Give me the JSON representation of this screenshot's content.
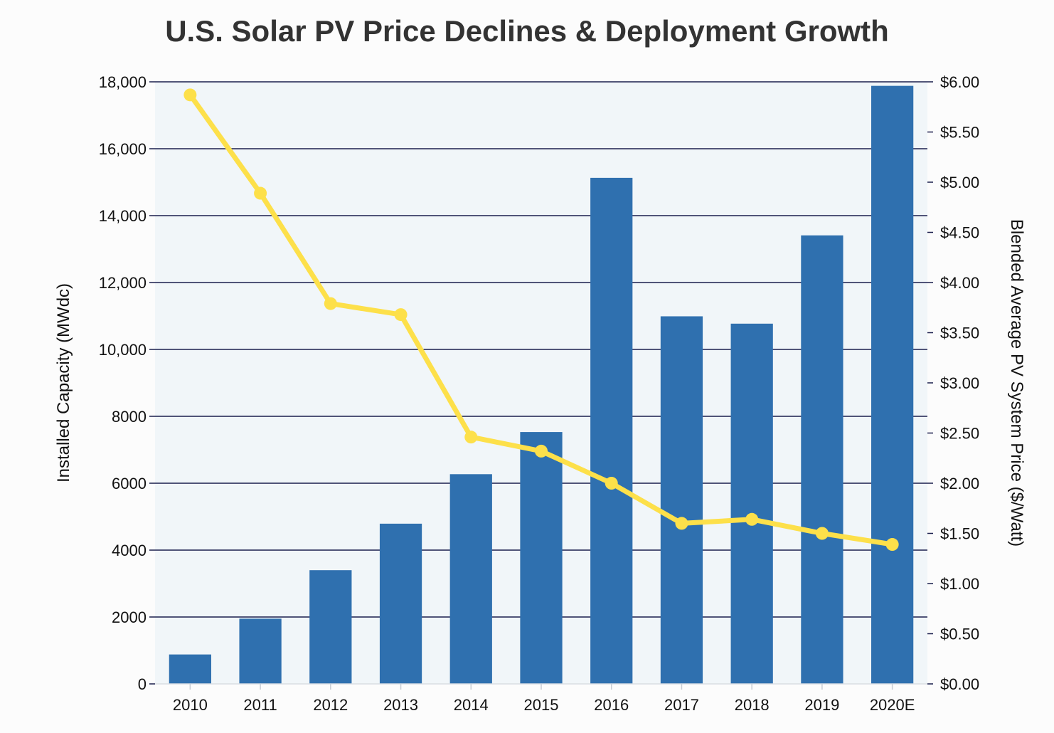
{
  "chart_data": {
    "type": "bar",
    "title": "U.S. Solar PV Price Declines & Deployment Growth",
    "categories": [
      "2010",
      "2011",
      "2012",
      "2013",
      "2014",
      "2015",
      "2016",
      "2017",
      "2018",
      "2019",
      "2020E"
    ],
    "series": [
      {
        "type": "bar",
        "axis": "left",
        "color": "#2f70af",
        "values": [
          880,
          1950,
          3400,
          4790,
          6270,
          7530,
          15130,
          10990,
          10770,
          13410,
          17880
        ]
      },
      {
        "type": "line",
        "axis": "right",
        "color": "#fde04a",
        "values": [
          5.87,
          4.89,
          3.79,
          3.68,
          2.46,
          2.32,
          2.0,
          1.6,
          1.64,
          1.5,
          1.39
        ]
      }
    ],
    "y_left": {
      "label": "Installed Capacity (MWdc)",
      "range": [
        0,
        18000
      ],
      "ticks": [
        0,
        2000,
        4000,
        6000,
        8000,
        10000,
        12000,
        14000,
        16000,
        18000
      ],
      "tick_labels": [
        "0",
        "2000",
        "4000",
        "6000",
        "8000",
        "10,000",
        "12,000",
        "14,000",
        "16,000",
        "18,000"
      ]
    },
    "y_right": {
      "label": "Blended Average PV System Price ($/Watt)",
      "range": [
        0,
        6
      ],
      "ticks": [
        0,
        0.5,
        1,
        1.5,
        2,
        2.5,
        3,
        3.5,
        4,
        4.5,
        5,
        5.5,
        6
      ],
      "tick_labels": [
        "$0.00",
        "$0.50",
        "$1.00",
        "$1.50",
        "$2.00",
        "$2.50",
        "$3.00",
        "$3.50",
        "$4.00",
        "$4.50",
        "$5.00",
        "$5.50",
        "$6.00"
      ]
    },
    "grid": true,
    "colors": {
      "plot_background": "#f1f6f9",
      "grid": "#1a1f4d",
      "text": "#111111",
      "title": "#333333"
    }
  }
}
